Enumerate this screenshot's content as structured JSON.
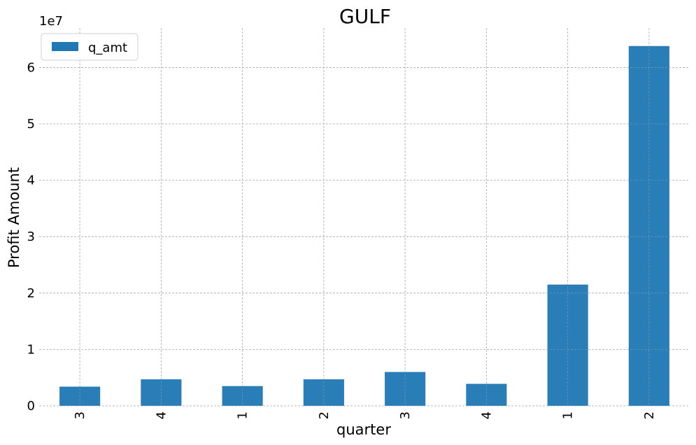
{
  "chart_data": {
    "type": "bar",
    "title": "GULF",
    "xlabel": "quarter",
    "ylabel": "Profit Amount",
    "y_offset_label": "1e7",
    "categories": [
      "3",
      "4",
      "1",
      "2",
      "3",
      "4",
      "1",
      "2"
    ],
    "series": [
      {
        "name": "q_amt",
        "color": "#1f77b4",
        "values": [
          3400000,
          4700000,
          3500000,
          4700000,
          6000000,
          3900000,
          21500000,
          63800000
        ]
      }
    ],
    "ylim": [
      0,
      67000000
    ],
    "yticks": [
      0,
      10000000,
      20000000,
      30000000,
      40000000,
      50000000,
      60000000
    ],
    "ytick_labels": [
      "0",
      "1",
      "2",
      "3",
      "4",
      "5",
      "6"
    ],
    "grid": true,
    "legend_position": "top-left"
  }
}
